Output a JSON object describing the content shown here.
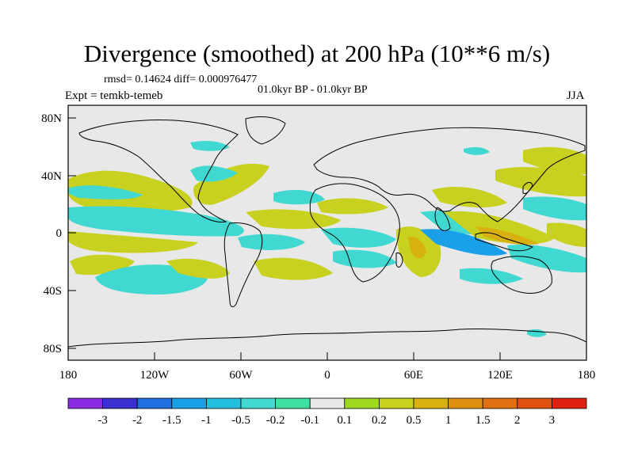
{
  "title": "Divergence (smoothed) at 200 hPa (10**6 m/s)",
  "stats": "rmsd= 0.14624 diff= 0.000976477",
  "period": "01.0kyr BP - 01.0kyr BP",
  "experiment": "Expt = temkb-temeb",
  "season": "JJA",
  "axes": {
    "lat_ticks": [
      "80N",
      "40N",
      "0",
      "40S",
      "80S"
    ],
    "lon_ticks": [
      "180",
      "120W",
      "60W",
      "0",
      "60E",
      "120E",
      "180"
    ]
  },
  "colorbar": {
    "colors": [
      "#8a2be2",
      "#3a2fd0",
      "#1e6fe0",
      "#1aa0e8",
      "#23c0e0",
      "#40d8d0",
      "#3de0a0",
      "#e8e8e8",
      "#9ed820",
      "#c8d020",
      "#d8b010",
      "#e09010",
      "#e07010",
      "#e05010",
      "#e02010"
    ],
    "labels": [
      "-3",
      "-2",
      "-1.5",
      "-1",
      "-0.5",
      "-0.2",
      "-0.1",
      "0.1",
      "0.2",
      "0.5",
      "1",
      "1.5",
      "2",
      "3"
    ]
  }
}
